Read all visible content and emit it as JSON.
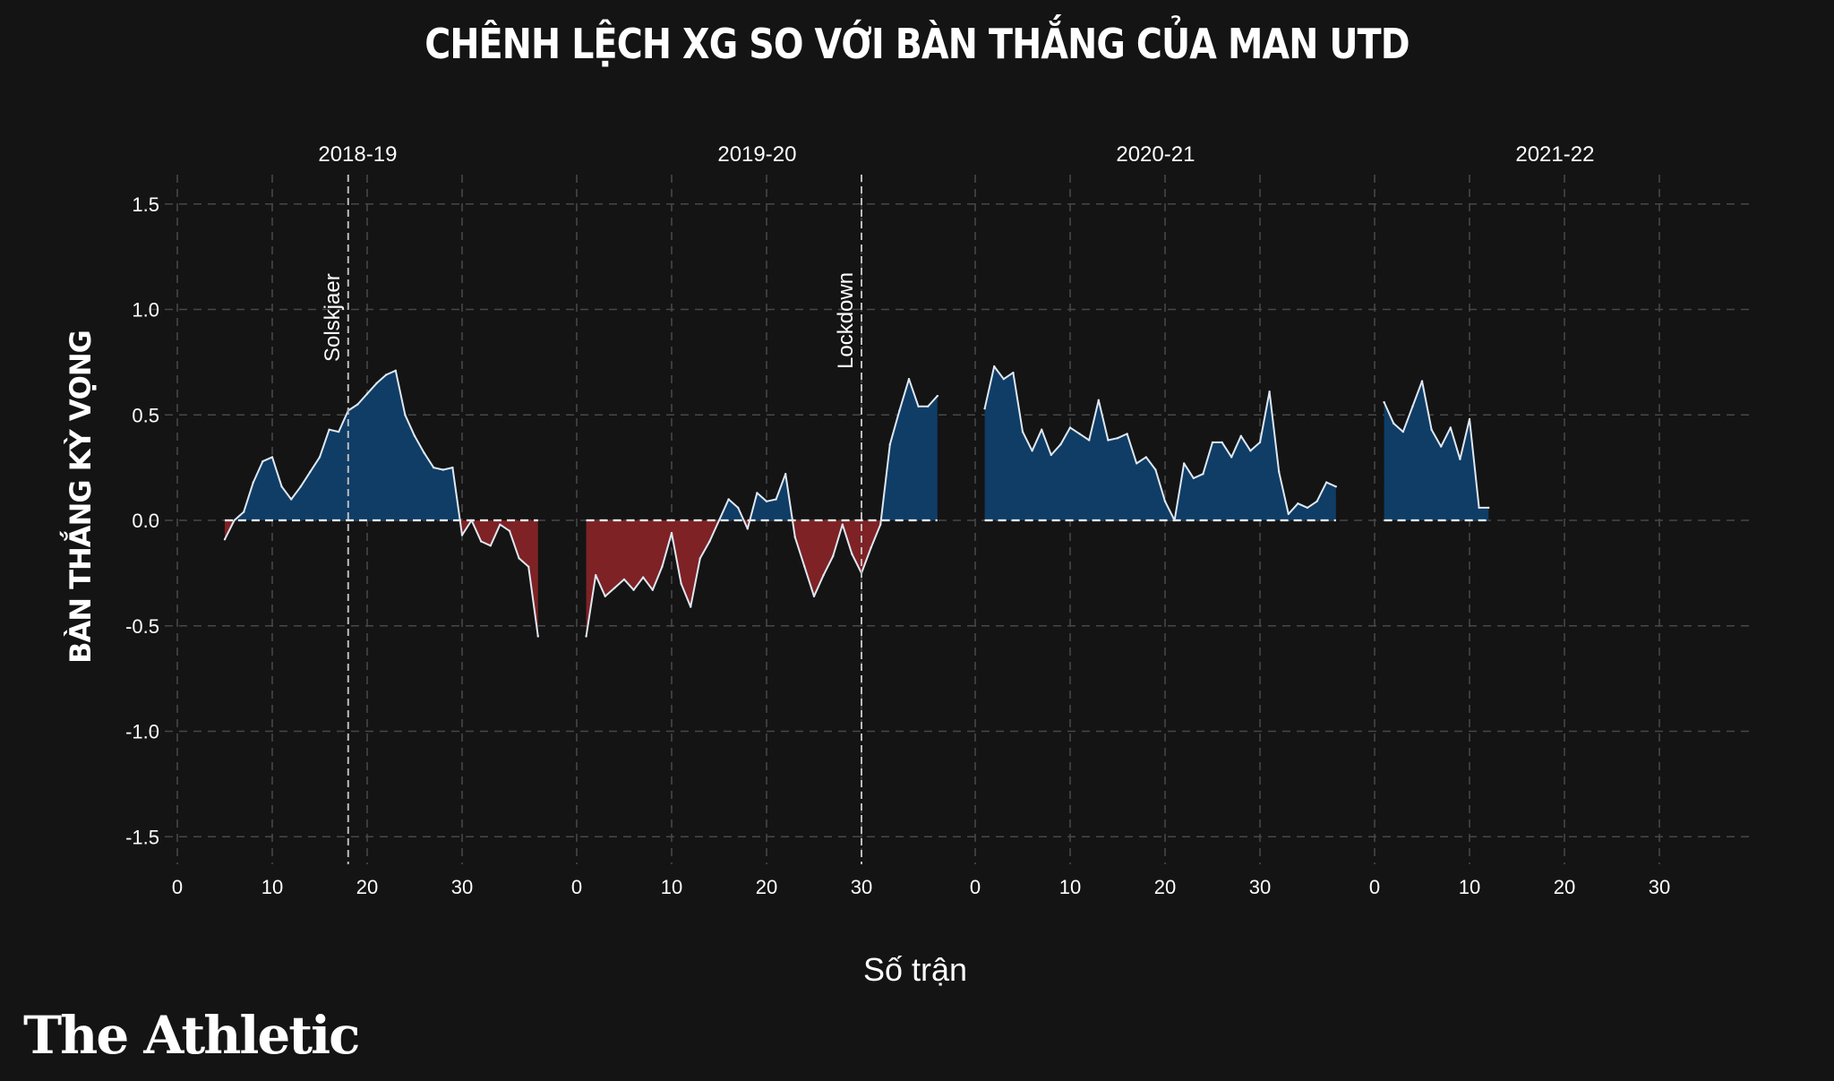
{
  "page": {
    "brand": "The Athletic"
  },
  "chart_data": {
    "type": "area",
    "title": "CHÊNH LỆCH XG SO VỚI BÀN THẮNG CỦA MAN UTD",
    "xlabel": "Số trận",
    "ylabel": "BÀN THẮNG KỲ VỌNG",
    "ylim": [
      -1.6,
      1.6
    ],
    "yticks": [
      1.5,
      1.0,
      0.5,
      0.0,
      -0.5,
      -1.0,
      -1.5
    ],
    "ytick_labels": [
      "1.5",
      "1.0",
      "0.5",
      "0.0",
      "-0.5",
      "-1.0",
      "-1.5"
    ],
    "xlim": [
      0,
      38
    ],
    "xticks": [
      0,
      10,
      20,
      30
    ],
    "xtick_labels": [
      "0",
      "10",
      "20",
      "30"
    ],
    "grid": true,
    "colors": {
      "positive": "#0f3d66",
      "negative": "#7e2225",
      "line": "#dfe8f2",
      "grid": "#474747",
      "zero_line": "#ffffff"
    },
    "panels": [
      {
        "season": "2018-19",
        "annotation": {
          "label": "Solskjaer",
          "x": 18
        },
        "x": [
          5,
          6,
          7,
          8,
          9,
          10,
          11,
          12,
          13,
          14,
          15,
          16,
          17,
          18,
          19,
          20,
          21,
          22,
          23,
          24,
          25,
          26,
          27,
          28,
          29,
          30,
          31,
          32,
          33,
          34,
          35,
          36,
          37,
          38
        ],
        "y": [
          -0.09,
          0.0,
          0.04,
          0.18,
          0.28,
          0.3,
          0.16,
          0.1,
          0.16,
          0.23,
          0.3,
          0.43,
          0.42,
          0.52,
          0.55,
          0.6,
          0.65,
          0.69,
          0.71,
          0.5,
          0.4,
          0.32,
          0.25,
          0.24,
          0.25,
          -0.07,
          0.0,
          -0.1,
          -0.12,
          -0.02,
          -0.05,
          -0.18,
          -0.22,
          -0.55
        ]
      },
      {
        "season": "2019-20",
        "annotation": {
          "label": "Lockdown",
          "x": 30
        },
        "x": [
          1,
          2,
          3,
          4,
          5,
          6,
          7,
          8,
          9,
          10,
          11,
          12,
          13,
          14,
          15,
          16,
          17,
          18,
          19,
          20,
          21,
          22,
          23,
          24,
          25,
          26,
          27,
          28,
          29,
          30,
          31,
          32,
          33,
          34,
          35,
          36,
          37,
          38
        ],
        "y": [
          -0.55,
          -0.26,
          -0.36,
          -0.32,
          -0.28,
          -0.33,
          -0.27,
          -0.33,
          -0.22,
          -0.06,
          -0.3,
          -0.41,
          -0.18,
          -0.1,
          0.0,
          0.1,
          0.06,
          -0.04,
          0.13,
          0.09,
          0.1,
          0.22,
          -0.08,
          -0.22,
          -0.36,
          -0.26,
          -0.17,
          -0.02,
          -0.16,
          -0.25,
          -0.13,
          -0.02,
          0.36,
          0.52,
          0.67,
          0.54,
          0.54,
          0.59
        ]
      },
      {
        "season": "2020-21",
        "x": [
          1,
          2,
          3,
          4,
          5,
          6,
          7,
          8,
          9,
          10,
          11,
          12,
          13,
          14,
          15,
          16,
          17,
          18,
          19,
          20,
          21,
          22,
          23,
          24,
          25,
          26,
          27,
          28,
          29,
          30,
          31,
          32,
          33,
          34,
          35,
          36,
          37,
          38
        ],
        "y": [
          0.53,
          0.73,
          0.67,
          0.7,
          0.42,
          0.33,
          0.43,
          0.31,
          0.36,
          0.44,
          0.41,
          0.38,
          0.57,
          0.38,
          0.39,
          0.41,
          0.27,
          0.3,
          0.24,
          0.09,
          0.0,
          0.27,
          0.2,
          0.22,
          0.37,
          0.37,
          0.3,
          0.4,
          0.33,
          0.37,
          0.61,
          0.23,
          0.03,
          0.08,
          0.06,
          0.09,
          0.18,
          0.16
        ]
      },
      {
        "season": "2021-22",
        "x": [
          1,
          2,
          3,
          4,
          5,
          6,
          7,
          8,
          9,
          10,
          11,
          12
        ],
        "y": [
          0.56,
          0.46,
          0.42,
          0.54,
          0.66,
          0.43,
          0.35,
          0.44,
          0.29,
          0.48,
          0.06,
          0.06
        ]
      }
    ]
  }
}
